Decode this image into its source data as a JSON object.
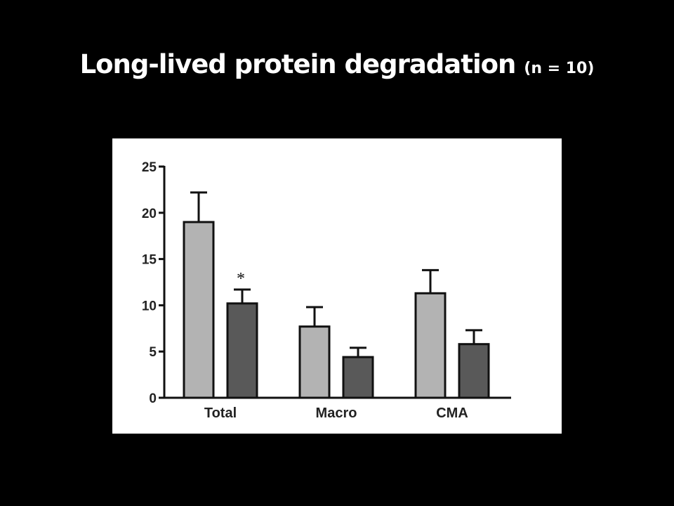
{
  "slide": {
    "title": "Long-lived protein degradation",
    "subtitle": "(n = 10)"
  },
  "colors": {
    "background": "#000000",
    "panel": "#ffffff",
    "series_light": "#b3b3b3",
    "series_dark": "#595959",
    "outline": "#111111"
  },
  "chart_data": {
    "type": "bar",
    "categories": [
      "Total",
      "Macro",
      "CMA"
    ],
    "series": [
      {
        "values": [
          19.0,
          7.7,
          11.3
        ],
        "errors": [
          3.2,
          2.1,
          2.5
        ],
        "color": "#b3b3b3"
      },
      {
        "values": [
          10.2,
          4.4,
          5.8
        ],
        "errors": [
          1.5,
          1.0,
          1.5
        ],
        "color": "#595959"
      }
    ],
    "ylim": [
      0,
      25
    ],
    "yticks": [
      0,
      5,
      10,
      15,
      20,
      25
    ],
    "xlabel": "",
    "ylabel": "",
    "legend": "none",
    "grid": false,
    "annotations": [
      {
        "text": "*",
        "category": "Total",
        "series": 1
      }
    ]
  }
}
